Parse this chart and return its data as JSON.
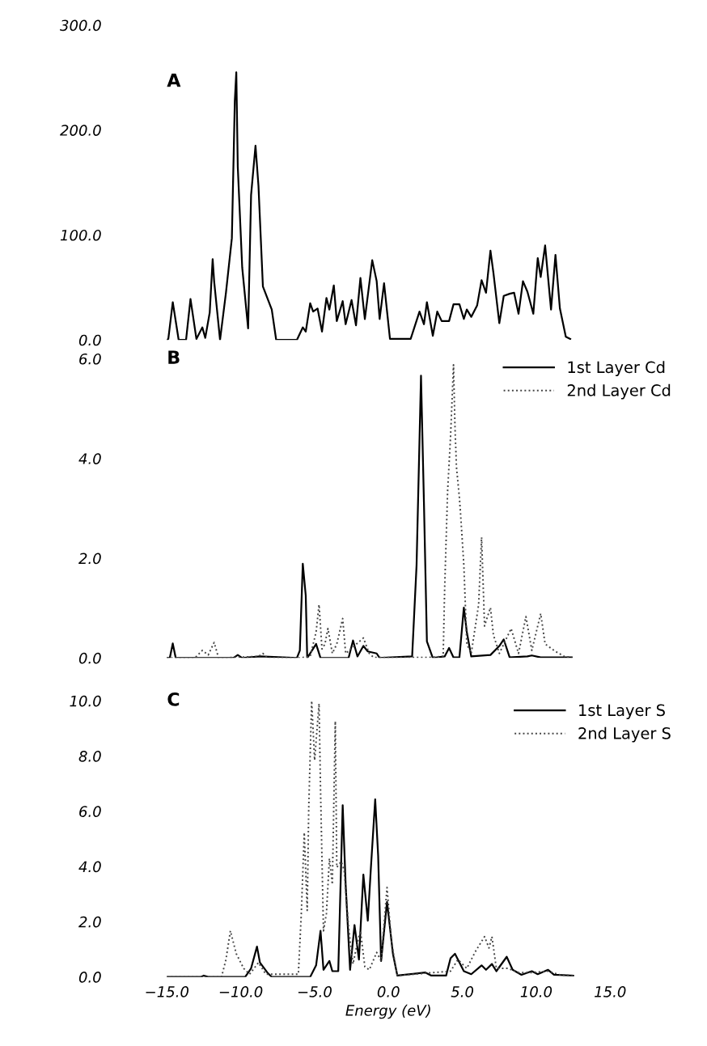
{
  "chart_data": [
    {
      "type": "line",
      "title": "A",
      "tick_labels": "y",
      "legend": false,
      "grid": false,
      "xlim": [
        -15,
        15
      ],
      "ylim": [
        0,
        300
      ],
      "yticks": [
        {
          "value": 0,
          "label": "0.0"
        },
        {
          "value": 100,
          "label": "100.0"
        },
        {
          "value": 200,
          "label": "200.0"
        },
        {
          "value": 300,
          "label": "300.0"
        }
      ],
      "series": [
        {
          "color": "#000000",
          "line_style": "solid",
          "x": [
            -15.0,
            -14.9,
            -14.6,
            -14.2,
            -13.7,
            -13.4,
            -13.0,
            -12.6,
            -12.4,
            -12.1,
            -11.9,
            -11.8,
            -11.4,
            -11.0,
            -10.6,
            -10.4,
            -10.3,
            -10.2,
            -9.9,
            -9.5,
            -9.3,
            -9.0,
            -8.8,
            -8.5,
            -7.9,
            -7.6,
            -6.2,
            -5.8,
            -5.6,
            -5.3,
            -5.1,
            -4.8,
            -4.5,
            -4.2,
            -4.0,
            -3.7,
            -3.5,
            -3.1,
            -2.9,
            -2.5,
            -2.2,
            -1.9,
            -1.6,
            -1.1,
            -0.8,
            -0.6,
            -0.3,
            0.1,
            1.5,
            2.1,
            2.4,
            2.6,
            3.0,
            3.3,
            3.6,
            4.1,
            4.4,
            4.8,
            5.1,
            5.3,
            5.6,
            6.0,
            6.3,
            6.6,
            6.8,
            6.9,
            7.1,
            7.5,
            7.8,
            8.2,
            8.5,
            8.8,
            9.1,
            9.4,
            9.8,
            10.1,
            10.3,
            10.6,
            11.0,
            11.3,
            11.6,
            12.0,
            12.3
          ],
          "values": [
            0,
            1,
            36,
            0,
            0,
            39,
            1,
            12,
            2,
            26,
            77,
            56,
            0,
            45,
            97,
            228,
            255,
            165,
            69,
            11,
            138,
            185,
            147,
            51,
            29,
            0,
            0,
            12,
            8,
            35,
            27,
            30,
            8,
            40,
            29,
            52,
            18,
            37,
            15,
            38,
            14,
            59,
            20,
            76,
            56,
            20,
            54,
            1,
            1,
            27,
            15,
            36,
            4,
            27,
            18,
            18,
            34,
            34,
            20,
            29,
            22,
            33,
            57,
            45,
            72,
            85,
            64,
            16,
            42,
            44,
            45,
            25,
            56,
            46,
            25,
            78,
            60,
            90,
            29,
            81,
            30,
            3,
            1
          ]
        }
      ]
    },
    {
      "type": "line",
      "title": "B",
      "tick_labels": "y",
      "legend": "top right",
      "grid": false,
      "xlim": [
        -15,
        15
      ],
      "ylim": [
        0,
        6
      ],
      "yticks": [
        {
          "value": 0,
          "label": "0.0"
        },
        {
          "value": 2,
          "label": "2.0"
        },
        {
          "value": 4,
          "label": "4.0"
        },
        {
          "value": 6,
          "label": "6.0"
        }
      ],
      "series": [
        {
          "name": "1st Layer Cd",
          "color": "#000000",
          "line_style": "solid",
          "x": [
            -15.0,
            -14.8,
            -14.6,
            -14.4,
            -10.5,
            -10.2,
            -9.9,
            -8.7,
            -6.2,
            -6.0,
            -5.8,
            -5.6,
            -5.5,
            -4.9,
            -4.6,
            -2.7,
            -2.4,
            -2.1,
            -1.7,
            -1.4,
            -0.8,
            -0.6,
            1.6,
            1.9,
            2.2,
            2.4,
            2.6,
            3.0,
            3.8,
            4.1,
            4.4,
            4.8,
            5.1,
            5.3,
            5.6,
            6.9,
            7.5,
            7.8,
            8.2,
            9.4,
            9.7,
            10.3,
            12.4
          ],
          "values": [
            0,
            0,
            0.29,
            0,
            0,
            0.06,
            0,
            0.03,
            0,
            0.15,
            1.89,
            1.25,
            0,
            0.28,
            0,
            0,
            0.35,
            0.03,
            0.24,
            0.13,
            0.09,
            0,
            0.03,
            1.86,
            5.66,
            3.1,
            0.33,
            0,
            0.03,
            0.2,
            0.01,
            0.01,
            1.01,
            0.52,
            0.03,
            0.06,
            0.24,
            0.37,
            0.01,
            0.03,
            0.05,
            0.01,
            0.01
          ]
        },
        {
          "name": "2nd Layer Cd",
          "color": "#444444",
          "line_style": "dotted",
          "x": [
            -15.0,
            -13.1,
            -12.6,
            -12.2,
            -11.8,
            -11.5,
            -8.8,
            -8.5,
            -8.2,
            -6.0,
            -5.3,
            -4.9,
            -4.7,
            -4.5,
            -4.3,
            -4.1,
            -3.8,
            -3.5,
            -3.1,
            -2.9,
            -1.7,
            -1.3,
            -1.0,
            2.7,
            3.7,
            3.8,
            4.0,
            4.2,
            4.4,
            4.5,
            4.6,
            4.8,
            4.9,
            5.1,
            5.3,
            5.6,
            6.1,
            6.3,
            6.5,
            6.7,
            6.9,
            7.1,
            7.5,
            8.3,
            8.8,
            9.3,
            9.7,
            10.3,
            10.6,
            11.3,
            11.9,
            12.4
          ],
          "values": [
            0,
            0,
            0.15,
            0.06,
            0.31,
            0,
            0.03,
            0.09,
            0,
            0,
            0.03,
            0.52,
            1.07,
            0.18,
            0.28,
            0.59,
            0.09,
            0.28,
            0.79,
            0.09,
            0.4,
            0.09,
            0.01,
            0.01,
            0.03,
            1.38,
            3.34,
            4.44,
            5.88,
            4.63,
            3.83,
            3.21,
            2.79,
            1.86,
            0.28,
            0.09,
            1.07,
            2.42,
            0.64,
            0.83,
            1.01,
            0.46,
            0.09,
            0.59,
            0.09,
            0.83,
            0.15,
            0.89,
            0.28,
            0.13,
            0.03,
            0.01
          ]
        }
      ]
    },
    {
      "type": "line",
      "title": "C",
      "xlabel": "Energy (eV)",
      "legend": "top right",
      "grid": false,
      "xlim": [
        -15,
        15
      ],
      "xticks": [
        {
          "value": -15,
          "label": "−15.0"
        },
        {
          "value": -10,
          "label": "−10.0"
        },
        {
          "value": -5,
          "label": "−5.0"
        },
        {
          "value": 0,
          "label": "0.0"
        },
        {
          "value": 5,
          "label": "5.0"
        },
        {
          "value": 10,
          "label": "10.0"
        },
        {
          "value": 15,
          "label": "15.0"
        }
      ],
      "ylim": [
        0,
        10
      ],
      "yticks": [
        {
          "value": 0,
          "label": "0.0"
        },
        {
          "value": 2,
          "label": "2.0"
        },
        {
          "value": 4,
          "label": "4.0"
        },
        {
          "value": 6,
          "label": "6.0"
        },
        {
          "value": 8,
          "label": "8.0"
        },
        {
          "value": 10,
          "label": "10.0"
        }
      ],
      "series": [
        {
          "name": "1st Layer S",
          "color": "#000000",
          "line_style": "solid",
          "x": [
            -15.0,
            -12.7,
            -12.5,
            -12.2,
            -9.7,
            -9.3,
            -8.9,
            -8.7,
            -8.2,
            -7.9,
            -5.3,
            -4.9,
            -4.6,
            -4.4,
            -4.0,
            -3.8,
            -3.4,
            -3.1,
            -2.9,
            -2.6,
            -2.3,
            -2.0,
            -1.7,
            -1.4,
            -1.2,
            -0.9,
            -0.7,
            -0.5,
            -0.1,
            0.3,
            0.6,
            2.5,
            2.9,
            3.9,
            4.2,
            4.5,
            5.1,
            5.6,
            6.3,
            6.6,
            7.0,
            7.3,
            8.0,
            8.4,
            9.0,
            9.7,
            10.1,
            10.8,
            11.2,
            12.5
          ],
          "values": [
            0,
            0,
            0.05,
            0,
            0,
            0.31,
            1.1,
            0.52,
            0.16,
            0,
            0,
            0.42,
            1.67,
            0.26,
            0.58,
            0.21,
            0.21,
            6.22,
            3.35,
            0.26,
            1.88,
            0.63,
            3.71,
            2.04,
            3.87,
            6.43,
            4.39,
            0.58,
            2.72,
            0.84,
            0.05,
            0.16,
            0.05,
            0.05,
            0.68,
            0.84,
            0.21,
            0.1,
            0.42,
            0.26,
            0.47,
            0.21,
            0.73,
            0.26,
            0.08,
            0.21,
            0.1,
            0.26,
            0.08,
            0.05
          ]
        },
        {
          "name": "2nd Layer S",
          "color": "#444444",
          "line_style": "dotted",
          "x": [
            -15.0,
            -11.3,
            -11.0,
            -10.7,
            -10.3,
            -9.8,
            -9.4,
            -8.8,
            -8.3,
            -6.1,
            -5.9,
            -5.7,
            -5.5,
            -5.4,
            -5.2,
            -5.0,
            -4.7,
            -4.6,
            -4.4,
            -4.2,
            -4.0,
            -3.8,
            -3.6,
            -3.5,
            -3.2,
            -3.0,
            -2.7,
            -2.4,
            -2.1,
            -1.9,
            -1.6,
            -1.3,
            -0.8,
            -0.5,
            -0.1,
            0.2,
            0.6,
            4.2,
            4.7,
            5.3,
            5.9,
            6.5,
            6.8,
            7.0,
            7.3,
            8.1,
            8.8,
            9.7,
            10.8,
            11.6,
            12.5
          ],
          "values": [
            0,
            0,
            0.63,
            1.67,
            0.84,
            0.31,
            0.1,
            0.52,
            0.1,
            0.1,
            2.3,
            5.23,
            2.41,
            6.07,
            10.0,
            7.85,
            9.9,
            6.8,
            1.67,
            2.3,
            4.29,
            3.35,
            9.26,
            3.97,
            4.18,
            3.87,
            1.78,
            0.47,
            1.26,
            1.67,
            0.37,
            0.26,
            0.89,
            0.58,
            3.24,
            1.26,
            0.05,
            0.21,
            0.63,
            0.31,
            0.94,
            1.46,
            1.05,
            1.46,
            0.31,
            0.31,
            0.16,
            0.16,
            0.21,
            0.08,
            0.05
          ]
        }
      ]
    }
  ]
}
